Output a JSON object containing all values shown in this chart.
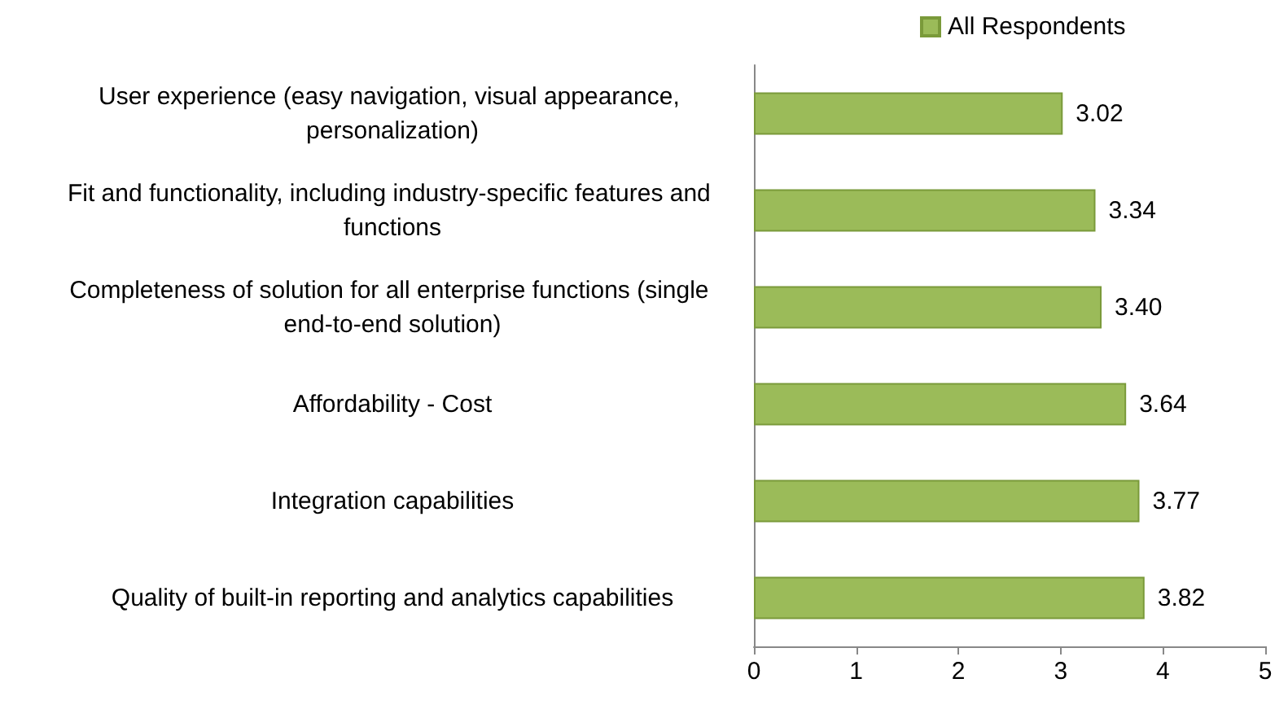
{
  "chart_data": {
    "type": "bar",
    "orientation": "horizontal",
    "categories": [
      "User experience (easy navigation, visual appearance, personalization)",
      "Fit and functionality, including industry-specific features and functions",
      "Completeness of solution for all enterprise functions (single end-to-end solution)",
      "Affordability - Cost",
      "Integration capabilities",
      "Quality of built-in reporting and analytics capabilities"
    ],
    "series": [
      {
        "name": "All Respondents",
        "color": "#9bbb59",
        "values": [
          3.02,
          3.34,
          3.4,
          3.64,
          3.77,
          3.82
        ]
      }
    ],
    "value_labels": [
      "3.02",
      "3.34",
      "3.40",
      "3.64",
      "3.77",
      "3.82"
    ],
    "xlim": [
      0,
      5
    ],
    "xticks": [
      0,
      1,
      2,
      3,
      4,
      5
    ],
    "grid": false,
    "legend": "top"
  }
}
